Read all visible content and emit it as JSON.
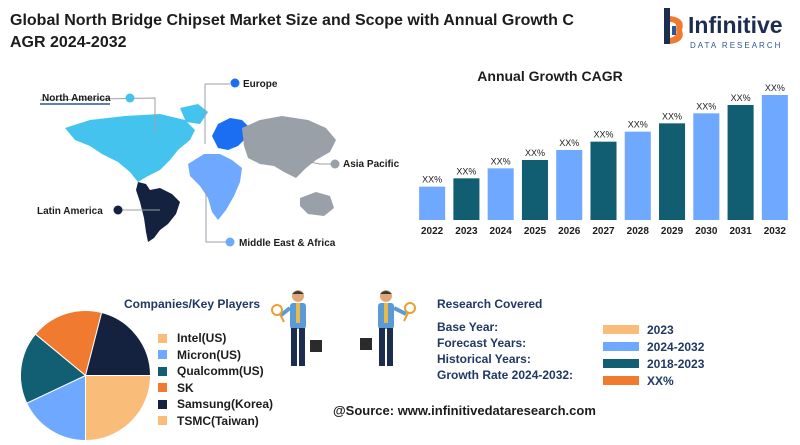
{
  "header": {
    "title": "Global North Bridge Chipset Market Size and Scope with Annual Growth C AGR 2024-2032"
  },
  "logo": {
    "name": "Infinitive",
    "subtitle": "DATA RESEARCH"
  },
  "regions": {
    "north_america": "North America",
    "europe": "Europe",
    "asia_pacific": "Asia Pacific",
    "latin_america": "Latin America",
    "middle_east_africa": "Middle East & Africa"
  },
  "chart_data": {
    "type": "bar",
    "title": "Annual Growth CAGR",
    "categories": [
      "2022",
      "2023",
      "2024",
      "2025",
      "2026",
      "2027",
      "2028",
      "2029",
      "2030",
      "2031",
      "2032"
    ],
    "series": [
      {
        "values": [
          4,
          5,
          6.2,
          7.2,
          8.4,
          9.4,
          10.6,
          11.6,
          12.8,
          13.8,
          15.0
        ]
      }
    ],
    "data_labels": [
      "XX%",
      "XX%",
      "XX%",
      "XX%",
      "XX%",
      "XX%",
      "XX%",
      "XX%",
      "XX%",
      "XX%",
      "XX%"
    ],
    "colors": [
      "#6fa8ff",
      "#115e73"
    ],
    "xlabel": "",
    "ylabel": "",
    "grid": false
  },
  "companies": {
    "title": "Companies/Key Players",
    "items": [
      {
        "label": "Intel(US)",
        "color": "#f9bc79"
      },
      {
        "label": "Micron(US)",
        "color": "#6fa8ff"
      },
      {
        "label": "Qualcomm(US)",
        "color": "#125e73"
      },
      {
        "label": "SK",
        "color": "#f07a2f"
      },
      {
        "label": "Samsung(Korea)",
        "color": "#14223f"
      },
      {
        "label": "TSMC(Taiwan)",
        "color": "#f9bc79"
      }
    ],
    "pie_shares": [
      0.25,
      0.18,
      0.18,
      0.18,
      0.21
    ],
    "pie_colors": [
      "#f9bc79",
      "#6fa8ff",
      "#125e73",
      "#f07a2f",
      "#14223f"
    ]
  },
  "research": {
    "title": "Research Covered",
    "rows": [
      {
        "label": "Base Year:",
        "value": "2023",
        "color": "#f9bc79"
      },
      {
        "label": "Forecast Years:",
        "value": "2024-2032",
        "color": "#6fa8ff"
      },
      {
        "label": "Historical Years:",
        "value": "2018-2023",
        "color": "#125e73"
      },
      {
        "label": "Growth Rate 2024-2032:",
        "value": "XX%",
        "color": "#f07a2f"
      }
    ]
  },
  "source": "@Source: www.infinitivedataresearch.com"
}
